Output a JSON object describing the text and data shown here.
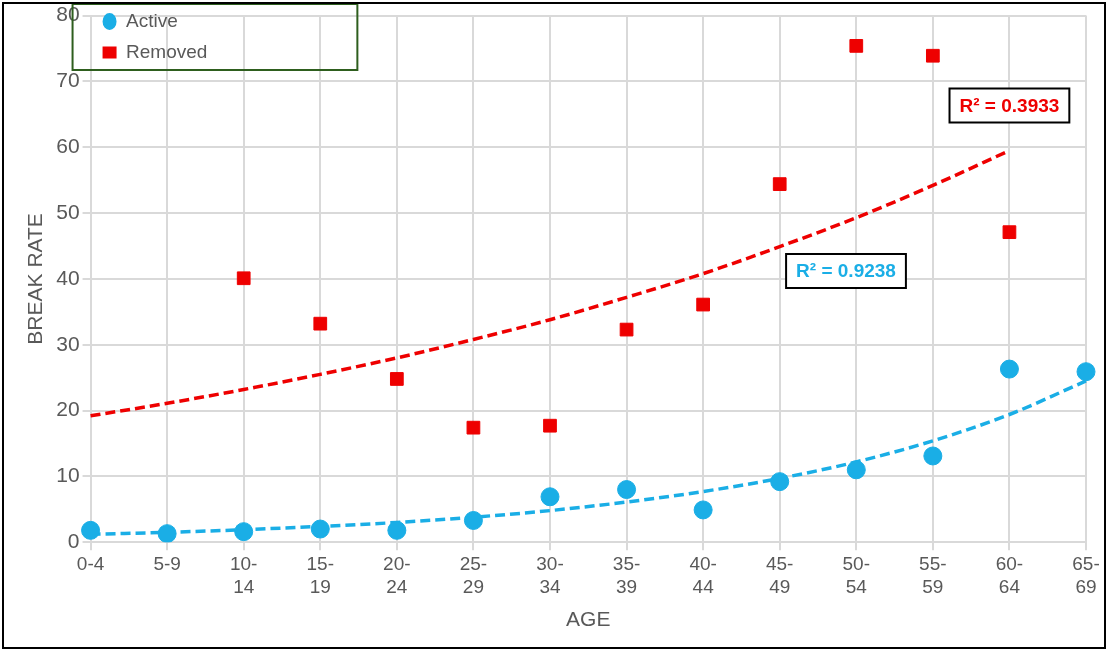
{
  "chart_data": {
    "type": "scatter",
    "xlabel": "AGE",
    "ylabel": "BREAK RATE",
    "categories": [
      "0-4",
      "5-9",
      "10-14",
      "15-19",
      "20-24",
      "25-29",
      "30-34",
      "35-39",
      "40-44",
      "45-49",
      "50-54",
      "55-59",
      "60-64",
      "65-69"
    ],
    "series": [
      {
        "name": "Active",
        "marker": "circle",
        "color": "#1aaee6",
        "values": [
          1.8,
          1.3,
          1.6,
          2.0,
          1.8,
          3.3,
          6.9,
          8.0,
          4.9,
          9.2,
          11.0,
          13.1,
          26.3,
          25.9
        ]
      },
      {
        "name": "Removed",
        "marker": "square",
        "color": "#ee0000",
        "values": [
          null,
          null,
          40.1,
          33.2,
          24.8,
          17.4,
          17.7,
          32.3,
          36.1,
          54.4,
          75.4,
          73.9,
          47.1,
          null
        ]
      },
      {
        "type": "line",
        "marker": "none",
        "line_style": "dashed",
        "color": "#1aaee6",
        "values": [
          1.2,
          1.5,
          1.9,
          2.4,
          3.0,
          3.8,
          4.8,
          6.1,
          7.7,
          9.7,
          12.2,
          15.4,
          19.4,
          24.5
        ]
      },
      {
        "type": "line",
        "marker": "none",
        "line_style": "dashed",
        "color": "#ee0000",
        "values": [
          19.2,
          21.1,
          23.2,
          25.5,
          28.0,
          30.8,
          33.8,
          37.2,
          40.8,
          44.9,
          49.3,
          54.2,
          59.5,
          null
        ]
      }
    ],
    "annotations": [
      "R² = 0.9238",
      "R² = 0.3933"
    ],
    "ylim": [
      0,
      80
    ],
    "yticks": [
      0,
      10,
      20,
      30,
      40,
      50,
      60,
      70,
      80
    ],
    "grid": true,
    "legend": "top left"
  }
}
